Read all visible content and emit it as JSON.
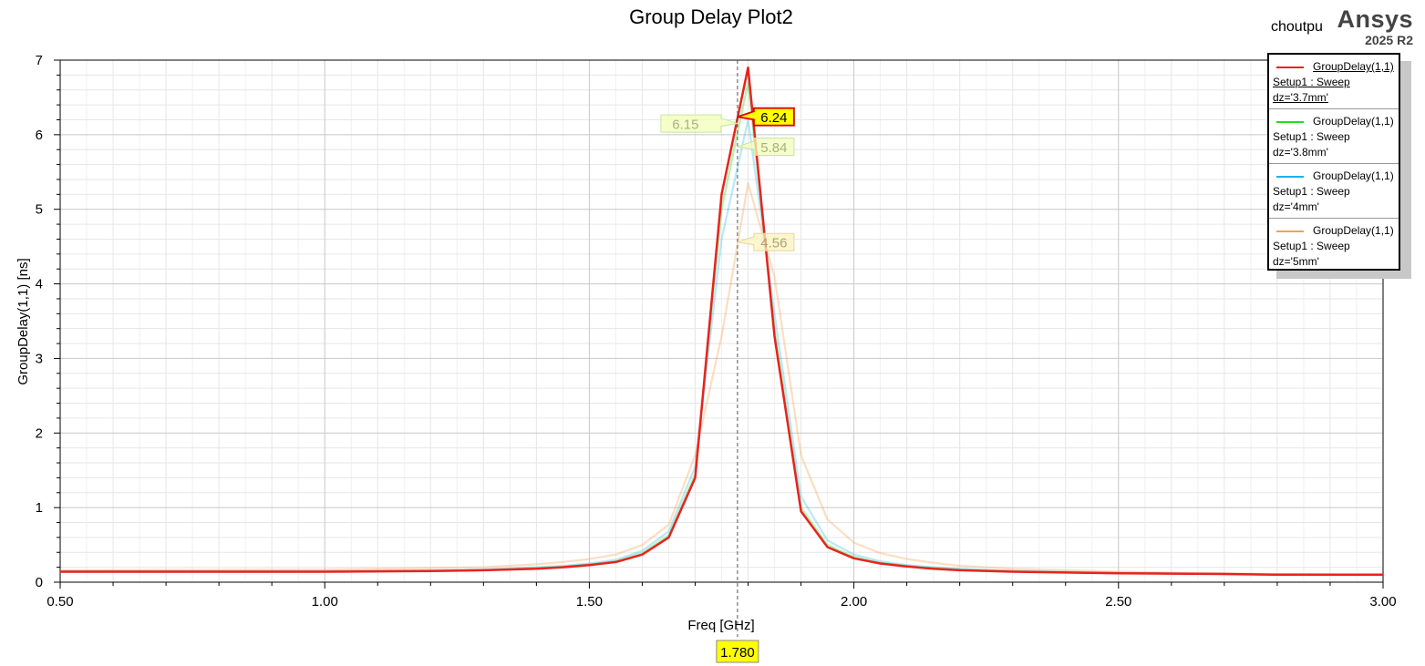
{
  "header": {
    "title": "Group Delay Plot2",
    "user": "choutpu",
    "brand": "Ansys",
    "version": "2025 R2"
  },
  "legend": {
    "items": [
      {
        "name": "GroupDelay(1,1)",
        "line2": "Setup1 : Sweep",
        "line3": "dz='3.7mm'",
        "color": "#e8231e",
        "active": true
      },
      {
        "name": "GroupDelay(1,1)",
        "line2": "Setup1 : Sweep",
        "line3": "dz='3.8mm'",
        "color": "#1fe01f",
        "active": false
      },
      {
        "name": "GroupDelay(1,1)",
        "line2": "Setup1 : Sweep",
        "line3": "dz='4mm'",
        "color": "#1ab2e8",
        "active": false
      },
      {
        "name": "GroupDelay(1,1)",
        "line2": "Setup1 : Sweep",
        "line3": "dz='5mm'",
        "color": "#f5a050",
        "active": false
      }
    ]
  },
  "chart_data": {
    "type": "line",
    "title": "Group Delay Plot2",
    "xlabel": "Freq [GHz]",
    "ylabel": "GroupDelay(1,1) [ns]",
    "xlim": [
      0.5,
      3.0
    ],
    "ylim": [
      0,
      7
    ],
    "xticks": [
      "0.50",
      "1.00",
      "1.50",
      "2.00",
      "2.50",
      "3.00"
    ],
    "yticks": [
      "0",
      "1",
      "2",
      "3",
      "4",
      "5",
      "6",
      "7"
    ],
    "grid": true,
    "legend_position": "top-right",
    "series": [
      {
        "name": "dz='3.7mm'",
        "color": "#e8231e",
        "active": true,
        "x": [
          0.5,
          1.0,
          1.2,
          1.3,
          1.4,
          1.45,
          1.5,
          1.55,
          1.6,
          1.65,
          1.7,
          1.75,
          1.8,
          1.85,
          1.9,
          1.95,
          2.0,
          2.05,
          2.1,
          2.15,
          2.2,
          2.3,
          2.4,
          2.5,
          2.6,
          2.7,
          2.8,
          3.0
        ],
        "y": [
          0.14,
          0.14,
          0.15,
          0.16,
          0.18,
          0.2,
          0.23,
          0.27,
          0.37,
          0.6,
          1.4,
          5.2,
          6.9,
          3.3,
          0.95,
          0.47,
          0.32,
          0.25,
          0.21,
          0.18,
          0.16,
          0.14,
          0.13,
          0.12,
          0.115,
          0.11,
          0.1,
          0.1
        ]
      },
      {
        "name": "dz='3.8mm'",
        "color": "#1fe01f",
        "active": false,
        "x": [
          0.5,
          1.0,
          1.2,
          1.3,
          1.4,
          1.45,
          1.5,
          1.55,
          1.6,
          1.65,
          1.7,
          1.75,
          1.8,
          1.85,
          1.9,
          1.95,
          2.0,
          2.05,
          2.1,
          2.15,
          2.2,
          2.3,
          2.4,
          2.5,
          2.6,
          2.7,
          2.8,
          3.0
        ],
        "y": [
          0.14,
          0.14,
          0.15,
          0.16,
          0.19,
          0.21,
          0.24,
          0.28,
          0.39,
          0.63,
          1.45,
          5.0,
          6.7,
          3.4,
          1.0,
          0.5,
          0.34,
          0.26,
          0.22,
          0.19,
          0.17,
          0.15,
          0.13,
          0.12,
          0.115,
          0.11,
          0.1,
          0.1
        ]
      },
      {
        "name": "dz='4mm'",
        "color": "#1ab2e8",
        "active": false,
        "x": [
          0.5,
          1.0,
          1.2,
          1.3,
          1.4,
          1.45,
          1.5,
          1.55,
          1.6,
          1.65,
          1.7,
          1.75,
          1.8,
          1.85,
          1.9,
          1.95,
          2.0,
          2.05,
          2.1,
          2.15,
          2.2,
          2.3,
          2.4,
          2.5,
          2.6,
          2.7,
          2.8,
          3.0
        ],
        "y": [
          0.15,
          0.15,
          0.16,
          0.17,
          0.2,
          0.22,
          0.25,
          0.3,
          0.42,
          0.68,
          1.55,
          4.6,
          6.2,
          3.6,
          1.15,
          0.56,
          0.37,
          0.28,
          0.23,
          0.2,
          0.18,
          0.15,
          0.14,
          0.13,
          0.12,
          0.11,
          0.1,
          0.1
        ]
      },
      {
        "name": "dz='5mm'",
        "color": "#f5a050",
        "active": false,
        "x": [
          0.5,
          1.0,
          1.2,
          1.3,
          1.4,
          1.45,
          1.5,
          1.55,
          1.6,
          1.65,
          1.7,
          1.75,
          1.8,
          1.85,
          1.9,
          1.95,
          2.0,
          2.05,
          2.1,
          2.15,
          2.2,
          2.3,
          2.4,
          2.5,
          2.6,
          2.7,
          2.8,
          3.0
        ],
        "y": [
          0.16,
          0.17,
          0.19,
          0.2,
          0.24,
          0.27,
          0.31,
          0.37,
          0.5,
          0.77,
          1.7,
          3.3,
          5.35,
          4.1,
          1.7,
          0.84,
          0.53,
          0.39,
          0.31,
          0.26,
          0.22,
          0.18,
          0.16,
          0.14,
          0.13,
          0.12,
          0.11,
          0.1
        ]
      }
    ],
    "marker": {
      "x_label": "1.780",
      "x": 1.78,
      "labels": [
        {
          "series": 0,
          "value": "6.24",
          "y": 6.24,
          "side": "right",
          "fill": "#ffff00",
          "border": "#e00000",
          "text": "#000000",
          "opacity": 1
        },
        {
          "series": 1,
          "value": "5.84",
          "y": 5.84,
          "side": "right",
          "fill": "#f3ffb8",
          "border": "#c5e6a0",
          "text": "#aab080",
          "opacity": 1
        },
        {
          "series": 2,
          "value": "6.15",
          "y": 6.15,
          "side": "left",
          "fill": "#f3ffb8",
          "border": "#c5e6a0",
          "text": "#aab080",
          "opacity": 1
        },
        {
          "series": 3,
          "value": "4.56",
          "y": 4.56,
          "side": "right",
          "fill": "#fbf3c0",
          "border": "#e8d890",
          "text": "#b0a070",
          "opacity": 1
        }
      ]
    }
  }
}
